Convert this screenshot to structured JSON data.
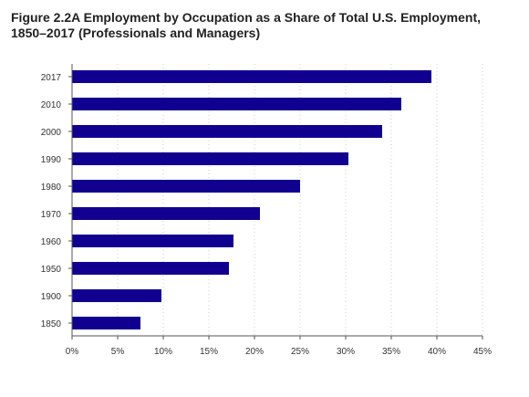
{
  "title": "Figure 2.2A Employment by Occupation as a Share of Total U.S. Employment, 1850–2017 (Professionals and Managers)",
  "chart_data": {
    "type": "bar",
    "orientation": "horizontal",
    "categories": [
      "2017",
      "2010",
      "2000",
      "1990",
      "1980",
      "1970",
      "1960",
      "1950",
      "1900",
      "1850"
    ],
    "values": [
      39.4,
      36.1,
      34.0,
      30.3,
      25.0,
      20.6,
      17.7,
      17.2,
      9.8,
      7.5
    ],
    "xlim": [
      0,
      45
    ],
    "xticks": [
      0,
      5,
      10,
      15,
      20,
      25,
      30,
      35,
      40,
      45
    ],
    "tick_suffix": "%",
    "grid": "vertical dotted",
    "bar_color": "#11008f"
  }
}
